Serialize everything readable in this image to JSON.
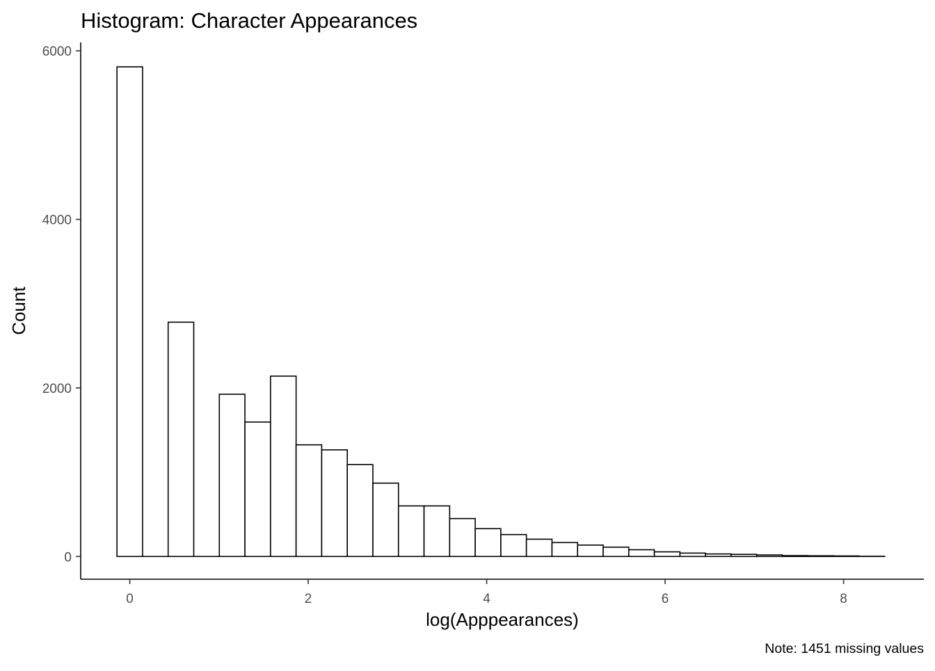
{
  "chart_data": {
    "type": "bar",
    "title": "Histogram: Character Appearances",
    "xlabel": "log(Apppearances)",
    "ylabel": "Count",
    "caption": "Note: 1451 missing values",
    "xlim": [
      -0.55,
      8.9
    ],
    "ylim": [
      -270,
      6100
    ],
    "x_ticks": [
      0,
      2,
      4,
      6,
      8
    ],
    "x_tick_labels": [
      "0",
      "2",
      "4",
      "6",
      "8"
    ],
    "y_ticks": [
      0,
      2000,
      4000,
      6000
    ],
    "y_tick_labels": [
      "0",
      "2000",
      "4000",
      "6000"
    ],
    "grid": false,
    "legend": "none",
    "bin_width": 0.2868,
    "bins": [
      {
        "xmin": -0.1434,
        "xmax": 0.1434,
        "count": 5810
      },
      {
        "xmin": 0.1434,
        "xmax": 0.4302,
        "count": 0
      },
      {
        "xmin": 0.4302,
        "xmax": 0.717,
        "count": 2780
      },
      {
        "xmin": 0.717,
        "xmax": 1.0038,
        "count": 0
      },
      {
        "xmin": 1.0038,
        "xmax": 1.2906,
        "count": 1925
      },
      {
        "xmin": 1.2906,
        "xmax": 1.5774,
        "count": 1595
      },
      {
        "xmin": 1.5774,
        "xmax": 1.8642,
        "count": 2140
      },
      {
        "xmin": 1.8642,
        "xmax": 2.151,
        "count": 1325
      },
      {
        "xmin": 2.151,
        "xmax": 2.4378,
        "count": 1265
      },
      {
        "xmin": 2.4378,
        "xmax": 2.7246,
        "count": 1090
      },
      {
        "xmin": 2.7246,
        "xmax": 3.0114,
        "count": 870
      },
      {
        "xmin": 3.0114,
        "xmax": 3.2982,
        "count": 600
      },
      {
        "xmin": 3.2982,
        "xmax": 3.585,
        "count": 600
      },
      {
        "xmin": 3.585,
        "xmax": 3.8718,
        "count": 450
      },
      {
        "xmin": 3.8718,
        "xmax": 4.1586,
        "count": 330
      },
      {
        "xmin": 4.1586,
        "xmax": 4.4454,
        "count": 260
      },
      {
        "xmin": 4.4454,
        "xmax": 4.7322,
        "count": 205
      },
      {
        "xmin": 4.7322,
        "xmax": 5.019,
        "count": 165
      },
      {
        "xmin": 5.019,
        "xmax": 5.3058,
        "count": 135
      },
      {
        "xmin": 5.3058,
        "xmax": 5.5926,
        "count": 110
      },
      {
        "xmin": 5.5926,
        "xmax": 5.8794,
        "count": 80
      },
      {
        "xmin": 5.8794,
        "xmax": 6.1662,
        "count": 55
      },
      {
        "xmin": 6.1662,
        "xmax": 6.453,
        "count": 40
      },
      {
        "xmin": 6.453,
        "xmax": 6.7398,
        "count": 30
      },
      {
        "xmin": 6.7398,
        "xmax": 7.0266,
        "count": 25
      },
      {
        "xmin": 7.0266,
        "xmax": 7.3134,
        "count": 18
      },
      {
        "xmin": 7.3134,
        "xmax": 7.6002,
        "count": 10
      },
      {
        "xmin": 7.6002,
        "xmax": 7.887,
        "count": 8
      },
      {
        "xmin": 7.887,
        "xmax": 8.1738,
        "count": 6
      },
      {
        "xmin": 8.1738,
        "xmax": 8.4606,
        "count": 2
      }
    ]
  }
}
